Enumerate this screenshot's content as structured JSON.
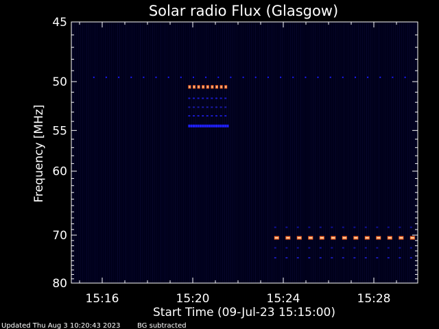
{
  "chart_data": {
    "type": "heatmap",
    "title": "Solar radio Flux (Glasgow)",
    "xlabel": "Start Time (09-Jul-23 15:15:00)",
    "ylabel": "Frequency [MHz]",
    "x_start_minute": 0,
    "x_end_minute": 15,
    "ylim": [
      45,
      80
    ],
    "x_ticks": [
      {
        "minute": 1,
        "label": "15:16"
      },
      {
        "minute": 5,
        "label": "15:20"
      },
      {
        "minute": 9,
        "label": "15:24"
      },
      {
        "minute": 13,
        "label": "15:28"
      }
    ],
    "y_ticks": [
      {
        "value": 45,
        "label": "45"
      },
      {
        "value": 50,
        "label": "50"
      },
      {
        "value": 55,
        "label": "55"
      },
      {
        "value": 60,
        "label": "60"
      },
      {
        "value": 70,
        "label": "70"
      },
      {
        "value": 80,
        "label": "80"
      }
    ],
    "background_color": "#000000",
    "plot_background": "#00001a",
    "features": [
      {
        "kind": "bright-dashes",
        "freq": 50.5,
        "t_start": 4.8,
        "t_end": 6.5,
        "dash_period": 0.2,
        "color": "#ff6a2a"
      },
      {
        "kind": "dim-dashes",
        "freq": 51.6,
        "t_start": 4.8,
        "t_end": 6.5,
        "dash_period": 0.2,
        "color": "#1a1acc"
      },
      {
        "kind": "dim-dashes",
        "freq": 52.5,
        "t_start": 4.8,
        "t_end": 6.5,
        "dash_period": 0.2,
        "color": "#1a1aaa"
      },
      {
        "kind": "dim-dashes",
        "freq": 53.4,
        "t_start": 4.8,
        "t_end": 6.5,
        "dash_period": 0.2,
        "color": "#1a1acc"
      },
      {
        "kind": "blue-dashes",
        "freq": 54.5,
        "t_start": 4.8,
        "t_end": 6.5,
        "dash_period": 0.1,
        "color": "#2020ff"
      },
      {
        "kind": "bright-dashes",
        "freq": 70.5,
        "t_start": 8.6,
        "t_end": 15.0,
        "dash_period": 0.5,
        "color": "#ff6a2a"
      },
      {
        "kind": "dim-dashes",
        "freq": 68.6,
        "t_start": 8.6,
        "t_end": 15.0,
        "dash_period": 0.5,
        "color": "#10109a"
      },
      {
        "kind": "dim-dashes",
        "freq": 72.4,
        "t_start": 8.6,
        "t_end": 15.0,
        "dash_period": 0.5,
        "color": "#10109a"
      },
      {
        "kind": "dim-dashes",
        "freq": 74.4,
        "t_start": 8.6,
        "t_end": 15.0,
        "dash_period": 0.5,
        "color": "#1a1ab8"
      },
      {
        "kind": "blue-specks",
        "freq": 49.6,
        "t_start": 0.6,
        "t_end": 15.0,
        "dash_period": 0.55,
        "color": "#1a1aff"
      }
    ]
  },
  "footer": {
    "updated": "Updated Thu Aug  3 10:20:43 2023",
    "note": "BG subtracted"
  }
}
